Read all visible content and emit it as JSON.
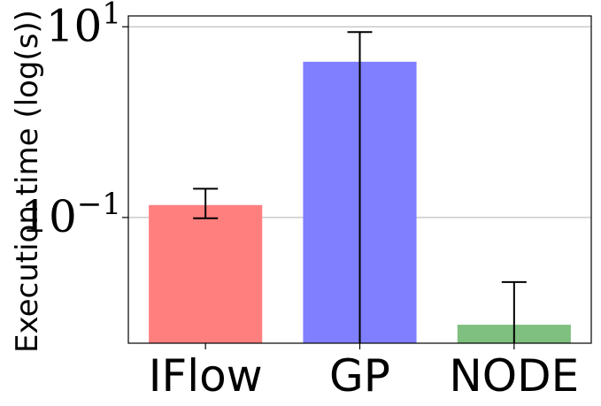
{
  "chart_data": {
    "type": "bar",
    "categories": [
      "IFlow",
      "GP",
      "NODE"
    ],
    "values": [
      0.135,
      4.3,
      0.0075
    ],
    "error_low": [
      0.098,
      0.001,
      0.001
    ],
    "error_high": [
      0.2,
      8.8,
      0.021
    ],
    "colors": [
      "#ff7f7f",
      "#7f7fff",
      "#7fbf7f"
    ],
    "ylabel": "Execution time (log(s))",
    "yscale": "log",
    "ylim": [
      0.0048,
      13
    ],
    "yticks": [
      {
        "value": 10,
        "base": "10",
        "exp": "1"
      },
      {
        "value": 0.1,
        "base": "10",
        "exp": "−1"
      }
    ],
    "grid": "horizontal at major ticks",
    "title": "",
    "xlabel": ""
  }
}
